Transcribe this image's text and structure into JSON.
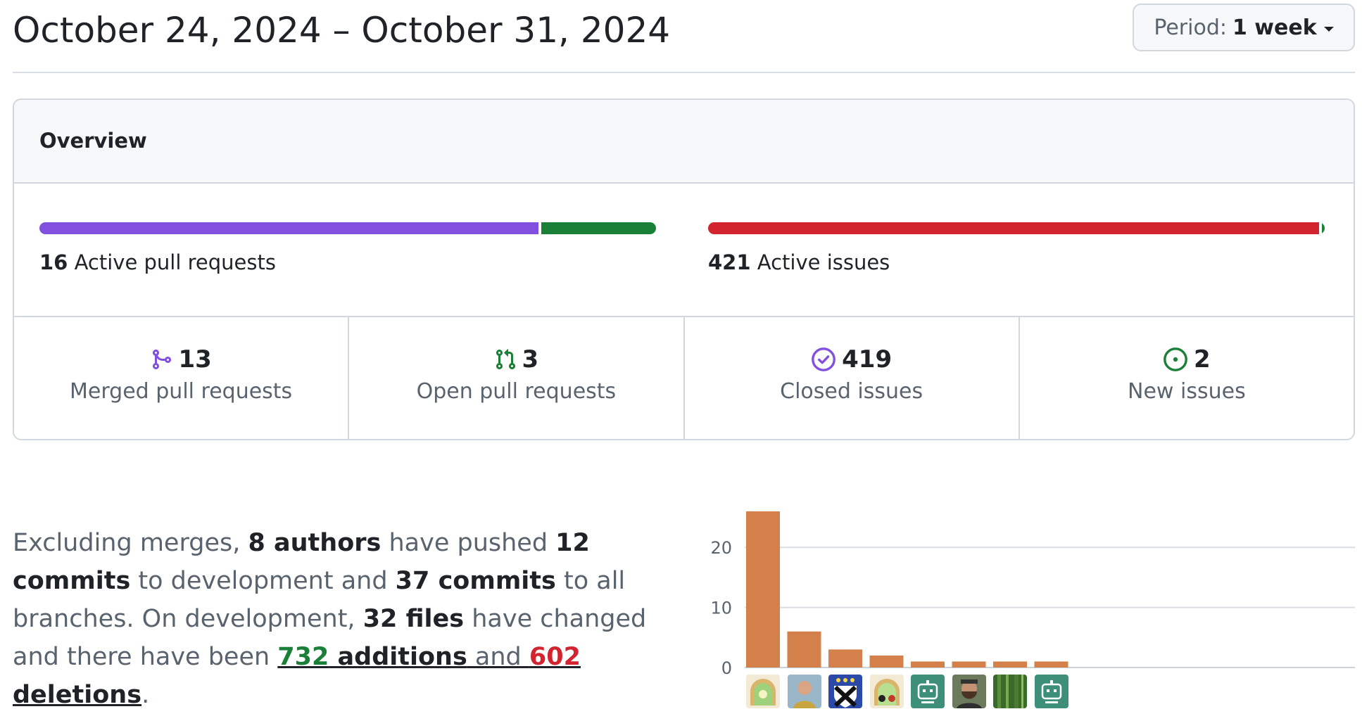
{
  "header": {
    "title": "October 24, 2024 – October 31, 2024",
    "period_label": "Period:",
    "period_value": "1 week"
  },
  "overview": {
    "title": "Overview",
    "active_prs_count": "16",
    "active_prs_label": "Active pull requests",
    "active_issues_count": "421",
    "active_issues_label": "Active issues",
    "pr_bar": {
      "merged_fraction": 0.8125,
      "open_fraction": 0.1875,
      "merged_color": "#8250df",
      "open_color": "#1a7f37"
    },
    "issue_bar": {
      "closed_fraction": 0.995,
      "new_fraction": 0.005,
      "closed_color": "#d1242f",
      "new_color": "#1a7f37"
    },
    "stats": [
      {
        "count": "13",
        "label": "Merged pull requests",
        "icon": "git-merge-icon",
        "color": "#8250df"
      },
      {
        "count": "3",
        "label": "Open pull requests",
        "icon": "git-pull-request-icon",
        "color": "#1a7f37"
      },
      {
        "count": "419",
        "label": "Closed issues",
        "icon": "issue-closed-icon",
        "color": "#8250df"
      },
      {
        "count": "2",
        "label": "New issues",
        "icon": "issue-opened-icon",
        "color": "#1a7f37"
      }
    ]
  },
  "summary": {
    "t1": "Excluding merges, ",
    "authors": "8 authors",
    "t2": " have pushed ",
    "commits_dev": "12 commits",
    "t3": " to development and ",
    "commits_all": "37 commits",
    "t4": " to all branches. On development, ",
    "files": "32 files",
    "t5": " have changed and there have been ",
    "additions_num": "732",
    "additions_word": " additions",
    "t6": " and ",
    "deletions_num": "602",
    "deletions_word": " deletions",
    "t7": "."
  },
  "chart_data": {
    "type": "bar",
    "categories": [
      "author-1",
      "author-2",
      "author-3",
      "author-4",
      "author-5",
      "author-6",
      "author-7",
      "author-8"
    ],
    "values": [
      26,
      6,
      3,
      2,
      1,
      1,
      1,
      1
    ],
    "yticks": [
      0,
      10,
      20
    ],
    "ylim": [
      0,
      26
    ],
    "grid": true,
    "bar_color": "#d4804a",
    "title": "",
    "xlabel": "",
    "ylabel": ""
  },
  "avatars": [
    {
      "icon": "avatar-arch-landscape-icon"
    },
    {
      "icon": "avatar-person-photo-icon"
    },
    {
      "icon": "avatar-shield-crest-icon"
    },
    {
      "icon": "avatar-arch-creatures-icon"
    },
    {
      "icon": "avatar-bot-identicon-icon"
    },
    {
      "icon": "avatar-bearded-person-icon"
    },
    {
      "icon": "avatar-forest-photo-icon"
    },
    {
      "icon": "avatar-bot-identicon-icon"
    }
  ]
}
